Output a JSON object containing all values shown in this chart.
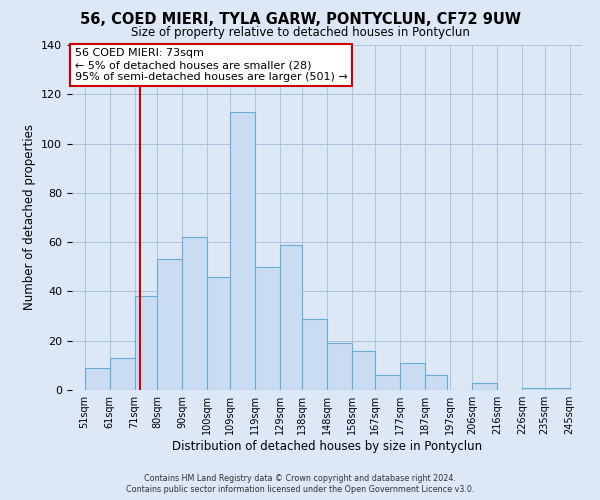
{
  "title": "56, COED MIERI, TYLA GARW, PONTYCLUN, CF72 9UW",
  "subtitle": "Size of property relative to detached houses in Pontyclun",
  "xlabel": "Distribution of detached houses by size in Pontyclun",
  "ylabel": "Number of detached properties",
  "bar_left_edges": [
    51,
    61,
    71,
    80,
    90,
    100,
    109,
    119,
    129,
    138,
    148,
    158,
    167,
    177,
    187,
    197,
    206,
    216,
    226,
    235
  ],
  "bar_widths": [
    10,
    10,
    9,
    10,
    10,
    9,
    10,
    10,
    9,
    10,
    10,
    9,
    10,
    10,
    9,
    9,
    10,
    10,
    9,
    10
  ],
  "bar_heights": [
    9,
    13,
    38,
    53,
    62,
    46,
    113,
    50,
    59,
    29,
    19,
    16,
    6,
    11,
    6,
    0,
    3,
    0,
    1,
    1
  ],
  "bar_color": "#c9dcf2",
  "bar_edge_color": "#6aaad4",
  "bar_edge_width": 0.8,
  "red_line_x": 73,
  "red_line_color": "#cc0000",
  "ylim": [
    0,
    140
  ],
  "yticks": [
    0,
    20,
    40,
    60,
    80,
    100,
    120,
    140
  ],
  "x_tick_labels": [
    "51sqm",
    "61sqm",
    "71sqm",
    "80sqm",
    "90sqm",
    "100sqm",
    "109sqm",
    "119sqm",
    "129sqm",
    "138sqm",
    "148sqm",
    "158sqm",
    "167sqm",
    "177sqm",
    "187sqm",
    "197sqm",
    "206sqm",
    "216sqm",
    "226sqm",
    "235sqm",
    "245sqm"
  ],
  "x_tick_positions": [
    51,
    61,
    71,
    80,
    90,
    100,
    109,
    119,
    129,
    138,
    148,
    158,
    167,
    177,
    187,
    197,
    206,
    216,
    226,
    235,
    245
  ],
  "annotation_title": "56 COED MIERI: 73sqm",
  "annotation_line1": "← 5% of detached houses are smaller (28)",
  "annotation_line2": "95% of semi-detached houses are larger (501) →",
  "annotation_box_facecolor": "#ffffff",
  "annotation_box_edgecolor": "#cc0000",
  "grid_color": "#aac4e0",
  "bg_color": "#dce8f5",
  "footer1": "Contains HM Land Registry data © Crown copyright and database right 2024.",
  "footer2": "Contains public sector information licensed under the Open Government Licence v3.0."
}
